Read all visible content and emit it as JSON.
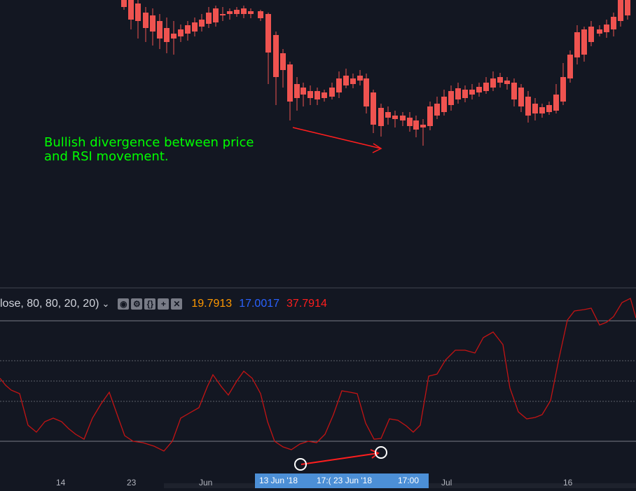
{
  "annotation": {
    "text_line1": "Bullish divergence between price",
    "text_line2": "and RSI movement."
  },
  "indicator_legend": {
    "params": "lose, 80, 80, 20, 20)",
    "chevron": "⌄",
    "buttons": [
      {
        "name": "eye-icon",
        "glyph": "◉"
      },
      {
        "name": "settings-icon",
        "glyph": "⚙"
      },
      {
        "name": "source-code-icon",
        "glyph": "{}"
      },
      {
        "name": "more-icon",
        "glyph": "+"
      },
      {
        "name": "close-icon",
        "glyph": "✕"
      }
    ],
    "value1": "19.7913",
    "value2": "17.0017",
    "value3": "37.7914"
  },
  "time_axis": {
    "ticks": [
      "14",
      "23",
      "Jun",
      "Jul",
      "16"
    ],
    "crosshair_label_1": "13 Jun '18",
    "crosshair_label_2": "17:(  23 Jun '18",
    "crosshair_label_3": "17:00"
  },
  "colors": {
    "background": "#131722",
    "up_candle": "#26a69a",
    "up_candle_light": "#53b987",
    "down_candle": "#ef5350",
    "rsi_line": "#c41414",
    "annotation_green": "#00ff00",
    "arrow_red": "#ff1e1e"
  }
}
